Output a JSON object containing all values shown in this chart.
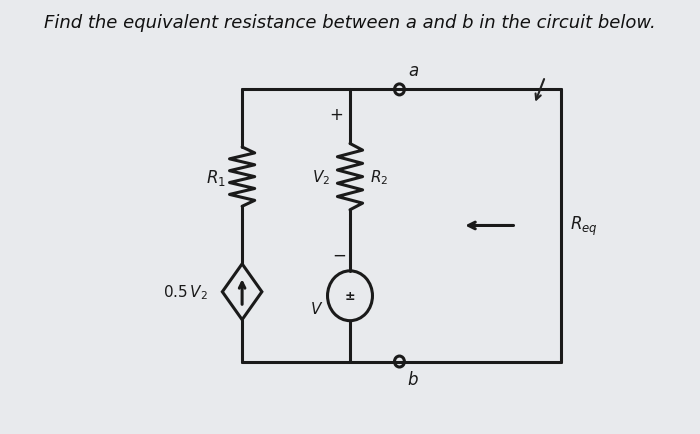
{
  "title": "Find the equivalent resistance between a and b in the circuit below.",
  "title_fontsize": 13.0,
  "bg_color": "#e8eaed",
  "line_color": "#1a1a1a",
  "line_width": 2.2,
  "fig_width": 7.0,
  "fig_height": 4.35,
  "dpi": 100
}
